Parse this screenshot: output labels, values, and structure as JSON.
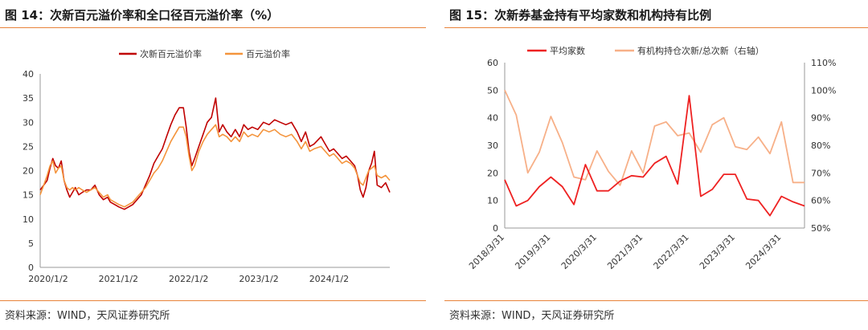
{
  "colors": {
    "dark_red": "#c00000",
    "orange": "#f4943c",
    "red": "#ee2222",
    "salmon": "#f7b088",
    "rule": "#e8833a"
  },
  "left": {
    "title": "图 14：次新百元溢价率和全口径百元溢价率（%）",
    "source": "资料来源：WIND，天风证券研究所",
    "legend": [
      "次新百元溢价率",
      "百元溢价率"
    ]
  },
  "right": {
    "title": "图 15：次新券基金持有平均家数和机构持有比例",
    "source": "资料来源：WIND，天风证券研究所",
    "legend": [
      "平均家数",
      "有机构持仓次新/总次新（右轴）"
    ]
  },
  "chart_data": [
    {
      "type": "line",
      "title": "图 14：次新百元溢价率和全口径百元溢价率（%）",
      "x_ticks": [
        "2020/1/2",
        "2021/1/2",
        "2022/1/2",
        "2023/1/2",
        "2024/1/2"
      ],
      "x_range": [
        2020.0,
        2024.98
      ],
      "ylim": [
        0,
        40
      ],
      "y_ticks": [
        0,
        5,
        10,
        15,
        20,
        25,
        30,
        35,
        40
      ],
      "grid": false,
      "legend_position": "top",
      "series": [
        {
          "name": "次新百元溢价率",
          "color": "#c00000",
          "points": [
            [
              2020.0,
              16
            ],
            [
              2020.05,
              17
            ],
            [
              2020.1,
              18
            ],
            [
              2020.14,
              20.5
            ],
            [
              2020.18,
              22.5
            ],
            [
              2020.22,
              21
            ],
            [
              2020.26,
              20.5
            ],
            [
              2020.3,
              22
            ],
            [
              2020.34,
              18
            ],
            [
              2020.38,
              16
            ],
            [
              2020.42,
              14.5
            ],
            [
              2020.46,
              15.5
            ],
            [
              2020.5,
              16.5
            ],
            [
              2020.55,
              15
            ],
            [
              2020.6,
              15.5
            ],
            [
              2020.66,
              16
            ],
            [
              2020.72,
              16
            ],
            [
              2020.78,
              17
            ],
            [
              2020.84,
              15
            ],
            [
              2020.9,
              14
            ],
            [
              2020.96,
              14.5
            ],
            [
              2021.0,
              13.5
            ],
            [
              2021.06,
              13
            ],
            [
              2021.12,
              12.5
            ],
            [
              2021.2,
              12
            ],
            [
              2021.26,
              12.5
            ],
            [
              2021.32,
              13
            ],
            [
              2021.38,
              14
            ],
            [
              2021.44,
              15
            ],
            [
              2021.5,
              17
            ],
            [
              2021.56,
              19
            ],
            [
              2021.62,
              21.5
            ],
            [
              2021.68,
              23
            ],
            [
              2021.74,
              24.5
            ],
            [
              2021.8,
              27
            ],
            [
              2021.86,
              29.5
            ],
            [
              2021.92,
              31.5
            ],
            [
              2021.98,
              33
            ],
            [
              2022.04,
              33
            ],
            [
              2022.08,
              29
            ],
            [
              2022.12,
              24
            ],
            [
              2022.16,
              21
            ],
            [
              2022.2,
              22.5
            ],
            [
              2022.26,
              25
            ],
            [
              2022.32,
              27.5
            ],
            [
              2022.38,
              30
            ],
            [
              2022.44,
              31
            ],
            [
              2022.5,
              35
            ],
            [
              2022.55,
              28
            ],
            [
              2022.6,
              29.5
            ],
            [
              2022.66,
              28
            ],
            [
              2022.72,
              27
            ],
            [
              2022.78,
              28.5
            ],
            [
              2022.84,
              27
            ],
            [
              2022.9,
              29.5
            ],
            [
              2022.96,
              28.5
            ],
            [
              2023.02,
              29
            ],
            [
              2023.1,
              28.5
            ],
            [
              2023.18,
              30
            ],
            [
              2023.26,
              29.5
            ],
            [
              2023.34,
              30.5
            ],
            [
              2023.42,
              30
            ],
            [
              2023.5,
              29.5
            ],
            [
              2023.58,
              30
            ],
            [
              2023.66,
              28
            ],
            [
              2023.72,
              26
            ],
            [
              2023.78,
              28
            ],
            [
              2023.84,
              25
            ],
            [
              2023.9,
              25.5
            ],
            [
              2024.0,
              27
            ],
            [
              2024.06,
              25.5
            ],
            [
              2024.12,
              24
            ],
            [
              2024.18,
              24.5
            ],
            [
              2024.24,
              23.5
            ],
            [
              2024.3,
              22.5
            ],
            [
              2024.36,
              23
            ],
            [
              2024.42,
              22
            ],
            [
              2024.48,
              21
            ],
            [
              2024.52,
              19
            ],
            [
              2024.56,
              16
            ],
            [
              2024.6,
              14.5
            ],
            [
              2024.64,
              16.5
            ],
            [
              2024.68,
              20
            ],
            [
              2024.72,
              21.5
            ],
            [
              2024.76,
              24
            ],
            [
              2024.8,
              17
            ],
            [
              2024.86,
              16.5
            ],
            [
              2024.92,
              17.5
            ],
            [
              2024.98,
              15.5
            ]
          ]
        },
        {
          "name": "百元溢价率",
          "color": "#f4943c",
          "points": [
            [
              2020.0,
              15
            ],
            [
              2020.05,
              17
            ],
            [
              2020.1,
              19
            ],
            [
              2020.14,
              21
            ],
            [
              2020.18,
              22
            ],
            [
              2020.22,
              19.5
            ],
            [
              2020.26,
              20.5
            ],
            [
              2020.3,
              21
            ],
            [
              2020.34,
              18
            ],
            [
              2020.38,
              16.5
            ],
            [
              2020.42,
              16
            ],
            [
              2020.46,
              16.5
            ],
            [
              2020.5,
              16
            ],
            [
              2020.55,
              16.5
            ],
            [
              2020.6,
              16
            ],
            [
              2020.66,
              15.5
            ],
            [
              2020.72,
              16
            ],
            [
              2020.78,
              16.5
            ],
            [
              2020.84,
              15.5
            ],
            [
              2020.9,
              14.5
            ],
            [
              2020.96,
              15
            ],
            [
              2021.0,
              14
            ],
            [
              2021.06,
              13.5
            ],
            [
              2021.12,
              13
            ],
            [
              2021.2,
              12.5
            ],
            [
              2021.26,
              13
            ],
            [
              2021.32,
              13.5
            ],
            [
              2021.38,
              14.5
            ],
            [
              2021.44,
              15.5
            ],
            [
              2021.5,
              16.5
            ],
            [
              2021.56,
              18
            ],
            [
              2021.62,
              19.5
            ],
            [
              2021.68,
              20.5
            ],
            [
              2021.74,
              22
            ],
            [
              2021.8,
              24
            ],
            [
              2021.86,
              26
            ],
            [
              2021.92,
              27.5
            ],
            [
              2021.98,
              29
            ],
            [
              2022.04,
              29
            ],
            [
              2022.08,
              27
            ],
            [
              2022.12,
              23
            ],
            [
              2022.16,
              20
            ],
            [
              2022.2,
              21
            ],
            [
              2022.26,
              24
            ],
            [
              2022.32,
              26
            ],
            [
              2022.38,
              27.5
            ],
            [
              2022.44,
              28.5
            ],
            [
              2022.5,
              29.5
            ],
            [
              2022.55,
              27
            ],
            [
              2022.6,
              27.5
            ],
            [
              2022.66,
              27
            ],
            [
              2022.72,
              26
            ],
            [
              2022.78,
              27
            ],
            [
              2022.84,
              26
            ],
            [
              2022.9,
              28
            ],
            [
              2022.96,
              27
            ],
            [
              2023.02,
              27.5
            ],
            [
              2023.1,
              27
            ],
            [
              2023.18,
              28.5
            ],
            [
              2023.26,
              28
            ],
            [
              2023.34,
              28.5
            ],
            [
              2023.42,
              27.5
            ],
            [
              2023.5,
              27
            ],
            [
              2023.58,
              27.5
            ],
            [
              2023.66,
              26
            ],
            [
              2023.72,
              24.5
            ],
            [
              2023.78,
              26
            ],
            [
              2023.84,
              24
            ],
            [
              2023.9,
              24.5
            ],
            [
              2024.0,
              25
            ],
            [
              2024.06,
              24
            ],
            [
              2024.12,
              23
            ],
            [
              2024.18,
              23.5
            ],
            [
              2024.24,
              22.5
            ],
            [
              2024.3,
              21.5
            ],
            [
              2024.36,
              22
            ],
            [
              2024.42,
              21.5
            ],
            [
              2024.48,
              20.5
            ],
            [
              2024.52,
              19
            ],
            [
              2024.56,
              17.5
            ],
            [
              2024.6,
              17
            ],
            [
              2024.64,
              18.5
            ],
            [
              2024.68,
              20
            ],
            [
              2024.72,
              20.5
            ],
            [
              2024.76,
              21
            ],
            [
              2024.8,
              19
            ],
            [
              2024.86,
              18.5
            ],
            [
              2024.92,
              19
            ],
            [
              2024.98,
              18
            ]
          ]
        }
      ]
    },
    {
      "type": "line",
      "title": "图 15：次新券基金持有平均家数和机构持有比例",
      "categories": [
        "2018/3/31",
        "2018/6/30",
        "2018/9/30",
        "2018/12/31",
        "2019/3/31",
        "2019/6/30",
        "2019/9/30",
        "2019/12/31",
        "2020/3/31",
        "2020/6/30",
        "2020/9/30",
        "2020/12/31",
        "2021/3/31",
        "2021/6/30",
        "2021/9/30",
        "2021/12/31",
        "2022/3/31",
        "2022/6/30",
        "2022/9/30",
        "2022/12/31",
        "2023/3/31",
        "2023/6/30",
        "2023/9/30",
        "2023/12/31",
        "2024/3/31",
        "2024/6/30",
        "2024/9/30"
      ],
      "x_tick_labels": [
        "2018/3/31",
        "2019/3/31",
        "2020/3/31",
        "2021/3/31",
        "2022/3/31",
        "2023/3/31",
        "2024/3/31"
      ],
      "ylim": [
        0,
        60
      ],
      "y_ticks": [
        0,
        10,
        20,
        30,
        40,
        50,
        60
      ],
      "y2lim": [
        0.5,
        1.1
      ],
      "y2_ticks": [
        "50%",
        "60%",
        "70%",
        "80%",
        "90%",
        "100%",
        "110%"
      ],
      "grid": false,
      "legend_position": "top",
      "series": [
        {
          "name": "平均家数",
          "axis": "left",
          "color": "#ee2222",
          "values": [
            17.5,
            8,
            10,
            15,
            18.5,
            15,
            8.5,
            23,
            13.5,
            13.5,
            17,
            19,
            18.5,
            23.5,
            26,
            16,
            48,
            11.5,
            14,
            19.5,
            19.5,
            10.5,
            10,
            4.5,
            11.5,
            9.5,
            8
          ]
        },
        {
          "name": "有机构持仓次新/总次新（右轴）",
          "axis": "right",
          "color": "#f7b088",
          "values": [
            1.0,
            0.91,
            0.7,
            0.775,
            0.905,
            0.81,
            0.685,
            0.675,
            0.78,
            0.705,
            0.655,
            0.78,
            0.7,
            0.87,
            0.885,
            0.835,
            0.845,
            0.775,
            0.875,
            0.9,
            0.795,
            0.785,
            0.83,
            0.77,
            0.885,
            0.665,
            0.665
          ]
        }
      ]
    }
  ]
}
